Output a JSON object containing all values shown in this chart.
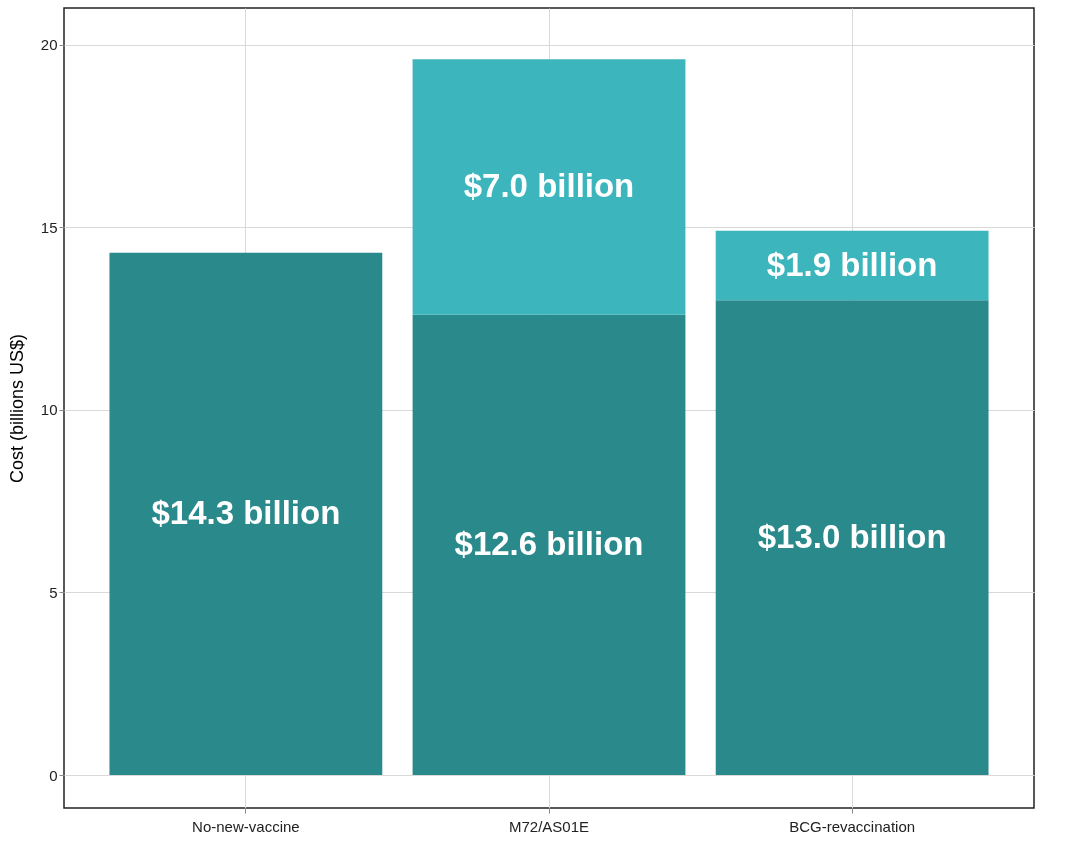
{
  "chart_data": {
    "type": "bar",
    "ylabel": "Cost (billions US$)",
    "categories": [
      "No-new-vaccine",
      "M72/AS01E",
      "BCG-revaccination"
    ],
    "stacked": true,
    "series": [
      {
        "color": "#2a898b",
        "values": [
          14.3,
          12.6,
          13.0
        ],
        "value_labels": [
          "$14.3 billion",
          "$12.6 billion",
          "$13.0 billion"
        ]
      },
      {
        "color": "#3cb5bc",
        "values": [
          null,
          7.0,
          1.9
        ],
        "value_labels": [
          null,
          "$7.0 billion",
          "$1.9 billion"
        ]
      }
    ],
    "ylim": [
      -0.9,
      21
    ],
    "yticks": [
      0,
      5,
      10,
      15,
      20
    ],
    "grid": true
  }
}
